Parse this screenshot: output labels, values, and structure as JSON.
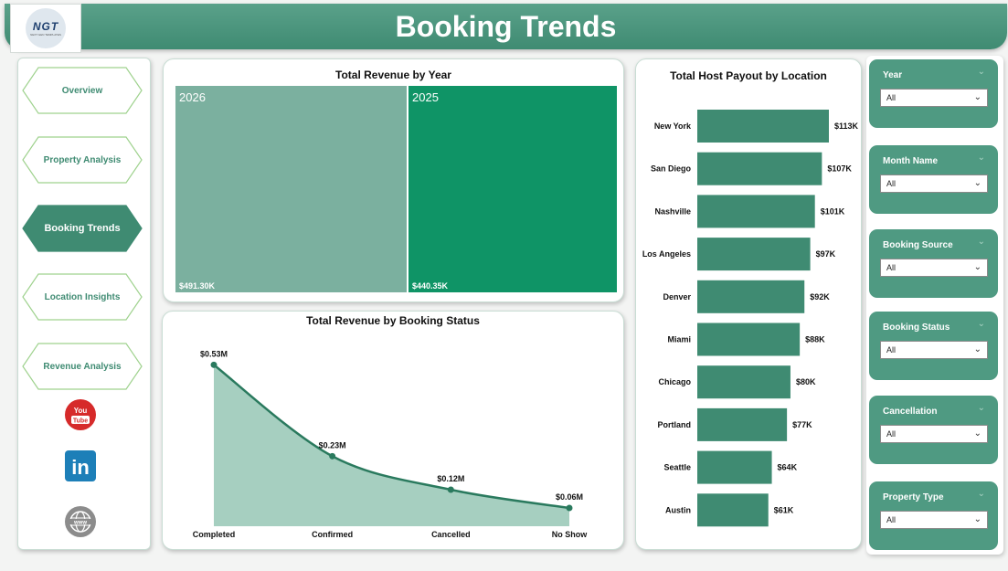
{
  "header": {
    "title": "Booking Trends",
    "logo_text": "NGT",
    "logo_subtext": "NEXT GEN TEMPLATES"
  },
  "nav": {
    "items": [
      {
        "label": "Overview",
        "active": false
      },
      {
        "label": "Property Analysis",
        "active": false
      },
      {
        "label": "Booking Trends",
        "active": true
      },
      {
        "label": "Location Insights",
        "active": false
      },
      {
        "label": "Revenue Analysis",
        "active": false
      }
    ],
    "social": {
      "youtube_text": "You Tube",
      "linkedin_text": "in",
      "web_text": "www"
    }
  },
  "colors": {
    "accent": "#3f8b72",
    "bar": "#3f8b72",
    "tile_2026": "#7bb09f",
    "tile_2025": "#0f9466",
    "area_fill": "#a6cfc0",
    "line": "#2a7a5e"
  },
  "revenue_by_year": {
    "title": "Total Revenue by Year",
    "tiles": [
      {
        "year": "2026",
        "value": "$491.30K"
      },
      {
        "year": "2025",
        "value": "$440.35K"
      }
    ]
  },
  "booking_status": {
    "title": "Total Revenue by Booking Status",
    "labels": [
      "$0.53M",
      "$0.23M",
      "$0.12M",
      "$0.06M"
    ]
  },
  "host_payout": {
    "title": "Total Host Payout by Location",
    "labels": [
      "$113K",
      "$107K",
      "$101K",
      "$97K",
      "$92K",
      "$88K",
      "$80K",
      "$77K",
      "$64K",
      "$61K"
    ]
  },
  "chart_data": [
    {
      "type": "area",
      "title": "Total Revenue by Booking Status",
      "categories": [
        "Completed",
        "Confirmed",
        "Cancelled",
        "No Show"
      ],
      "values": [
        0.53,
        0.23,
        0.12,
        0.06
      ],
      "unit": "M",
      "ylim": [
        0,
        0.6
      ]
    },
    {
      "type": "bar",
      "orientation": "horizontal",
      "title": "Total Host Payout by Location",
      "categories": [
        "New York",
        "San Diego",
        "Nashville",
        "Los Angeles",
        "Denver",
        "Miami",
        "Chicago",
        "Portland",
        "Seattle",
        "Austin"
      ],
      "values": [
        113,
        107,
        101,
        97,
        92,
        88,
        80,
        77,
        64,
        61
      ],
      "unit": "K",
      "xlim": [
        0,
        113
      ]
    }
  ],
  "slicers": [
    {
      "label": "Year",
      "value": "All"
    },
    {
      "label": "Month Name",
      "value": "All"
    },
    {
      "label": "Booking Source",
      "value": "All"
    },
    {
      "label": "Booking Status",
      "value": "All"
    },
    {
      "label": "Cancellation",
      "value": "All"
    },
    {
      "label": "Property Type",
      "value": "All"
    }
  ]
}
